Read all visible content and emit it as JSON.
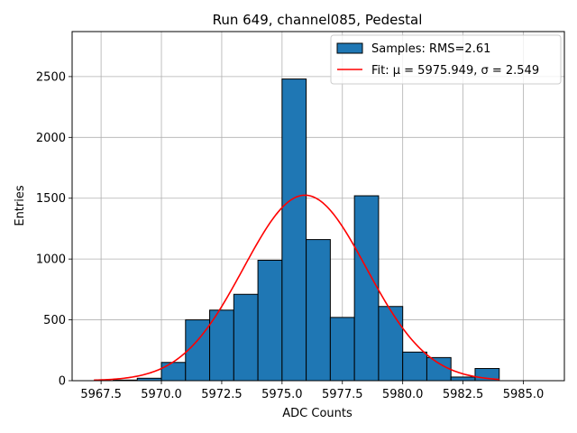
{
  "chart_data": {
    "type": "bar",
    "title": "Run 649, channel085, Pedestal",
    "xlabel": "ADC Counts",
    "ylabel": "Entries",
    "xlim": [
      5966.3,
      5986.7
    ],
    "ylim": [
      0,
      2870
    ],
    "grid": true,
    "legend_placement": "top-right",
    "x_ticks": [
      5967.5,
      5970.0,
      5972.5,
      5975.0,
      5977.5,
      5980.0,
      5982.5,
      5985.0
    ],
    "x_tick_labels": [
      "5967.5",
      "5970.0",
      "5972.5",
      "5975.0",
      "5977.5",
      "5980.0",
      "5982.5",
      "5985.0"
    ],
    "y_ticks": [
      0,
      500,
      1000,
      1500,
      2000,
      2500
    ],
    "y_tick_labels": [
      "0",
      "500",
      "1000",
      "1500",
      "2000",
      "2500"
    ],
    "histogram": {
      "name": "Samples: RMS=2.61",
      "color": "#1f77b4",
      "edge_color": "#000000",
      "bins": [
        {
          "x0": 5968,
          "x1": 5969,
          "value": 5
        },
        {
          "x0": 5969,
          "x1": 5970,
          "value": 20
        },
        {
          "x0": 5970,
          "x1": 5971,
          "value": 150
        },
        {
          "x0": 5971,
          "x1": 5972,
          "value": 500
        },
        {
          "x0": 5972,
          "x1": 5973,
          "value": 580
        },
        {
          "x0": 5973,
          "x1": 5974,
          "value": 710
        },
        {
          "x0": 5974,
          "x1": 5975,
          "value": 990
        },
        {
          "x0": 5975,
          "x1": 5976,
          "value": 2480
        },
        {
          "x0": 5976,
          "x1": 5977,
          "value": 1160
        },
        {
          "x0": 5977,
          "x1": 5978,
          "value": 520
        },
        {
          "x0": 5978,
          "x1": 5979,
          "value": 1520
        },
        {
          "x0": 5979,
          "x1": 5980,
          "value": 610
        },
        {
          "x0": 5980,
          "x1": 5981,
          "value": 235
        },
        {
          "x0": 5981,
          "x1": 5982,
          "value": 190
        },
        {
          "x0": 5982,
          "x1": 5983,
          "value": 30
        },
        {
          "x0": 5983,
          "x1": 5984,
          "value": 100
        }
      ]
    },
    "fit": {
      "name": "Fit: μ = 5975.949, σ = 2.549",
      "color": "#ff0000",
      "mu": 5975.949,
      "sigma": 2.549,
      "amplitude": 1525,
      "x_range": [
        5967.2,
        5984
      ]
    }
  }
}
